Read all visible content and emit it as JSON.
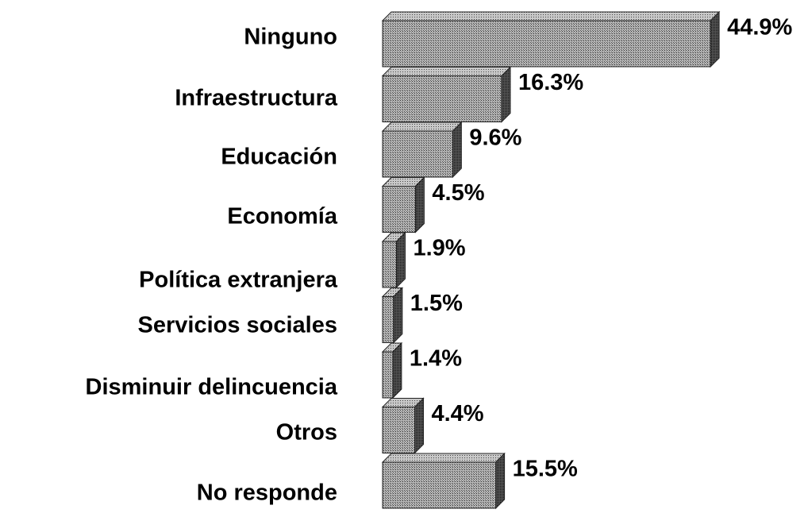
{
  "chart_data": {
    "type": "bar",
    "orientation": "horizontal",
    "categories": [
      "Ninguno",
      "Infraestructura",
      "Educación",
      "Economía",
      "Política extranjera",
      "Servicios sociales",
      "Disminuir delincuencia",
      "Otros",
      "No responde"
    ],
    "values": [
      44.9,
      16.3,
      9.6,
      4.5,
      1.9,
      1.5,
      1.4,
      4.4,
      15.5
    ],
    "value_labels": [
      "44.9%",
      "16.3%",
      "9.6%",
      "4.5%",
      "1.9%",
      "1.5%",
      "1.4%",
      "4.4%",
      "15.5%"
    ],
    "color": "#8c8c8c"
  }
}
